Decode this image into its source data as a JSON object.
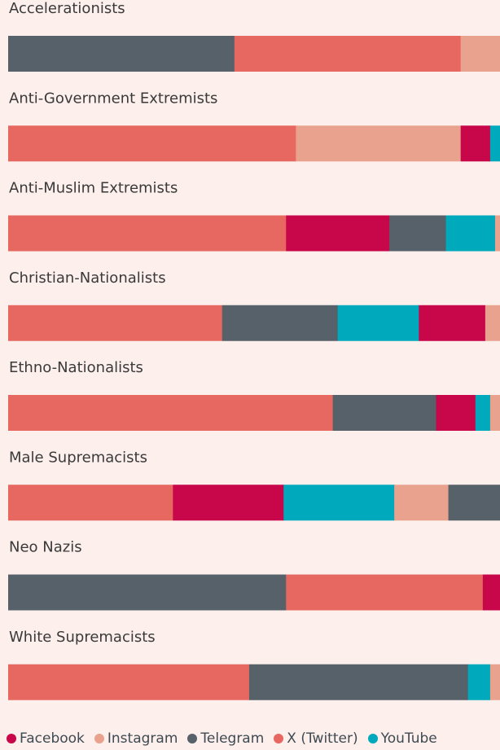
{
  "chart_data": {
    "type": "bar",
    "orientation": "horizontal",
    "stacked": true,
    "normalized": true,
    "categories": [
      "Accelerationists",
      "Anti-Government Extremists",
      "Anti-Muslim Extremists",
      "Christian-Nationalists",
      "Ethno-Nationalists",
      "Male Supremacists",
      "Neo Nazis",
      "White Supremacists"
    ],
    "segments": [
      [
        {
          "series": "Telegram",
          "value": 46.0
        },
        {
          "series": "X (Twitter)",
          "value": 46.0
        },
        {
          "series": "Instagram",
          "value": 8.0
        }
      ],
      [
        {
          "series": "X (Twitter)",
          "value": 58.5
        },
        {
          "series": "Instagram",
          "value": 33.5
        },
        {
          "series": "Facebook",
          "value": 6.0
        },
        {
          "series": "YouTube",
          "value": 2.0
        }
      ],
      [
        {
          "series": "X (Twitter)",
          "value": 56.5
        },
        {
          "series": "Facebook",
          "value": 21.0
        },
        {
          "series": "Telegram",
          "value": 11.5
        },
        {
          "series": "YouTube",
          "value": 10.0
        },
        {
          "series": "Instagram",
          "value": 1.0
        }
      ],
      [
        {
          "series": "X (Twitter)",
          "value": 43.5
        },
        {
          "series": "Telegram",
          "value": 23.5
        },
        {
          "series": "YouTube",
          "value": 16.5
        },
        {
          "series": "Facebook",
          "value": 13.5
        },
        {
          "series": "Instagram",
          "value": 3.0
        }
      ],
      [
        {
          "series": "X (Twitter)",
          "value": 66.0
        },
        {
          "series": "Telegram",
          "value": 21.0
        },
        {
          "series": "Facebook",
          "value": 8.0
        },
        {
          "series": "YouTube",
          "value": 3.0
        },
        {
          "series": "Instagram",
          "value": 2.0
        }
      ],
      [
        {
          "series": "X (Twitter)",
          "value": 33.5
        },
        {
          "series": "Facebook",
          "value": 22.5
        },
        {
          "series": "YouTube",
          "value": 22.5
        },
        {
          "series": "Instagram",
          "value": 11.0
        },
        {
          "series": "Telegram",
          "value": 10.5
        }
      ],
      [
        {
          "series": "Telegram",
          "value": 56.5
        },
        {
          "series": "X (Twitter)",
          "value": 40.0
        },
        {
          "series": "Facebook",
          "value": 3.5
        }
      ],
      [
        {
          "series": "X (Twitter)",
          "value": 49.0
        },
        {
          "series": "Telegram",
          "value": 44.5
        },
        {
          "series": "YouTube",
          "value": 4.5
        },
        {
          "series": "Instagram",
          "value": 2.0
        }
      ]
    ],
    "legend": [
      {
        "name": "Facebook",
        "color": "#c8064a"
      },
      {
        "name": "Instagram",
        "color": "#e9a28e"
      },
      {
        "name": "Telegram",
        "color": "#56616a"
      },
      {
        "name": "X (Twitter)",
        "color": "#e76861"
      },
      {
        "name": "YouTube",
        "color": "#00a9bc"
      }
    ],
    "legend_position": "bottom",
    "grid": false
  }
}
